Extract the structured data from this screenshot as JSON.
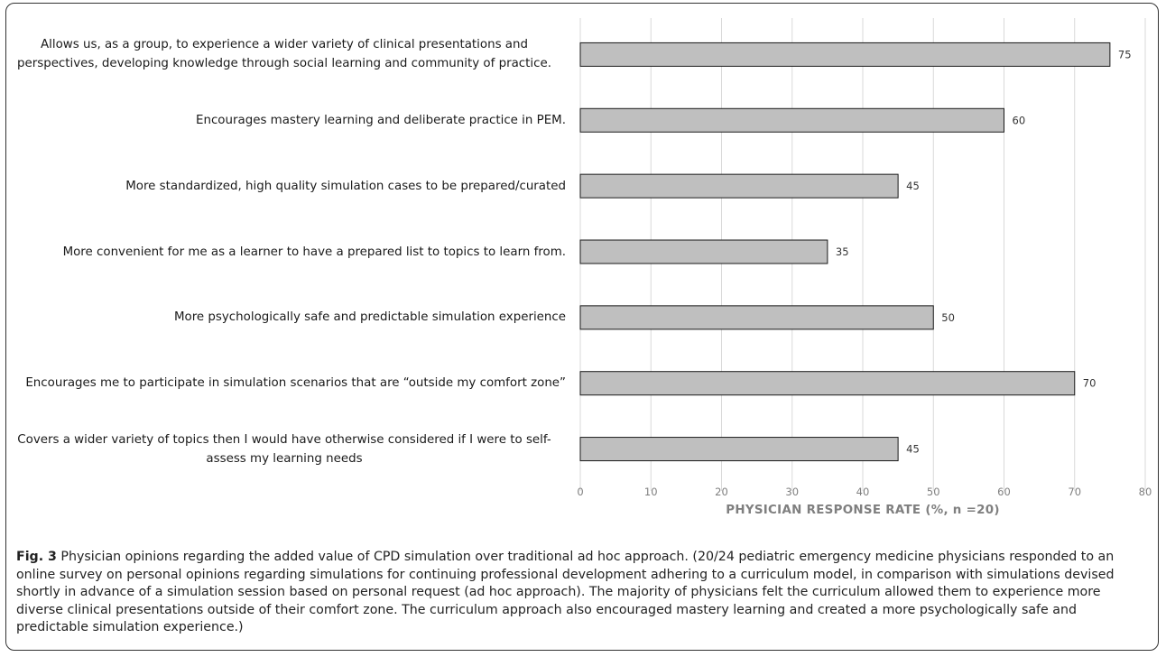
{
  "chart_data": {
    "type": "bar",
    "orientation": "horizontal",
    "categories": [
      "Allows us, as a group, to experience a wider variety of clinical presentations and perspectives, developing knowledge through social learning and community of practice.",
      "Encourages mastery learning and deliberate practice in PEM.",
      "More standardized, high quality simulation cases to be prepared/curated",
      "More convenient for me as a learner to have a prepared list to topics to learn from.",
      "More psychologically safe and predictable simulation experience",
      "Encourages me to participate in simulation scenarios that are “outside my comfort zone”",
      "Covers a wider variety of topics then I would have otherwise considered if I were to self-assess my learning needs"
    ],
    "values": [
      75,
      60,
      45,
      35,
      50,
      70,
      45
    ],
    "data_labels": [
      "75",
      "60",
      "45",
      "35",
      "50",
      "70",
      "45"
    ],
    "xlabel": "PHYSICIAN RESPONSE RATE (%, n =20)",
    "xlim": [
      0,
      80
    ],
    "xticks": [
      "0",
      "10",
      "20",
      "30",
      "40",
      "50",
      "60",
      "70",
      "80"
    ],
    "grid": "vertical",
    "legend": "none",
    "bar_color": "#bfbfbf",
    "bar_edge_color": "#1a1a1a",
    "grid_color": "#d9d9d9"
  },
  "caption": {
    "label": "Fig. 3",
    "text": " Physician opinions regarding the added value of CPD simulation over traditional ad hoc approach. (20/24 pediatric emergency medicine physicians responded to an online survey on personal opinions regarding simulations for continuing professional development adhering to a curriculum model, in comparison with simulations devised shortly in advance of a simulation session based on personal request (ad hoc approach). The majority of physicians felt the curriculum allowed them to experience more diverse clinical presentations outside of their comfort zone. The curriculum approach also encouraged mastery learning and created a more psychologically safe and predictable simulation experience.)"
  }
}
